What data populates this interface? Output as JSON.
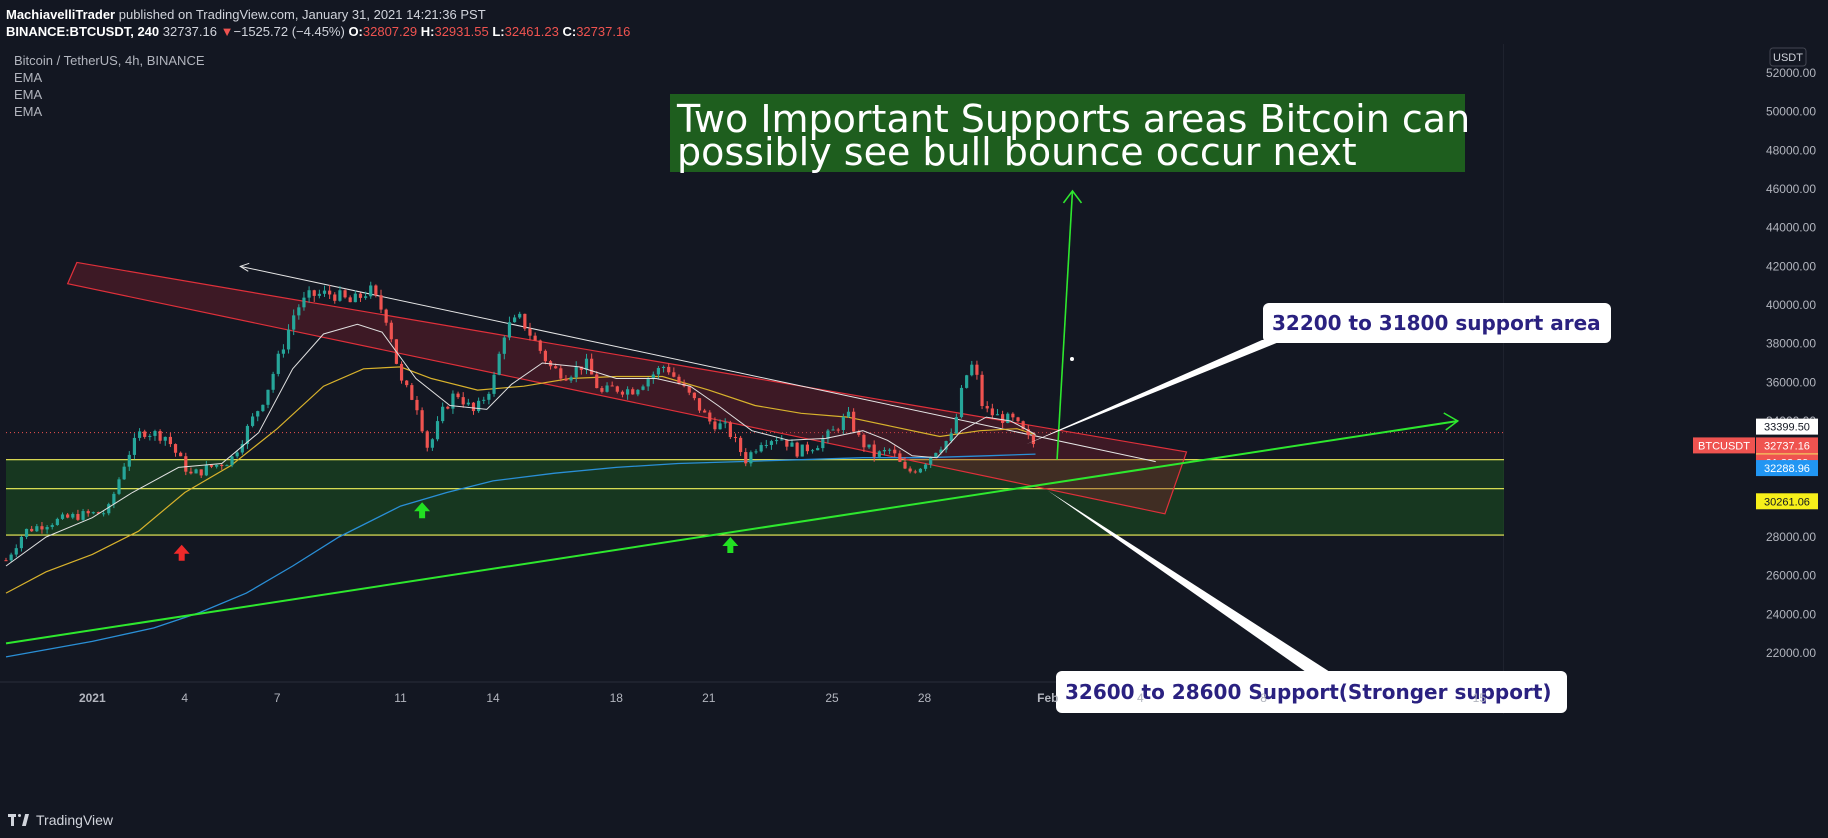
{
  "header": {
    "author": "MachiavelliTrader",
    "published_text": " published on TradingView.com, January 31, 2021 14:21:36 PST",
    "symbol": "BINANCE:BTCUSDT, 240",
    "last": "32737.16",
    "change_arrow": "▼",
    "change": "−1525.72 (−4.45%)",
    "o_label": "O:",
    "o_val": "32807.29",
    "h_label": "H:",
    "h_val": "32931.55",
    "l_label": "L:",
    "l_val": "32461.23",
    "c_label": "C:",
    "c_val": "32737.16"
  },
  "legend": {
    "title": "Bitcoin / TetherUS, 4h, BINANCE",
    "ema1": "EMA",
    "ema2": "EMA",
    "ema3": "EMA"
  },
  "footer": {
    "brand": "TradingView"
  },
  "colors": {
    "background": "#131722",
    "up": "#26a69a",
    "down": "#ef5350",
    "support_zone": "#1b4d1f",
    "channel": "#ef5350",
    "trend_green": "#2ee82e",
    "ema_white": "#e0e0e0",
    "ema_yellow": "#d8b22c",
    "ema_blue": "#2a8fd6"
  },
  "chart_data": {
    "type": "candlestick",
    "currency_label": "USDT",
    "y_ticks": [
      22000,
      24000,
      26000,
      28000,
      30000,
      32000,
      34000,
      36000,
      38000,
      40000,
      42000,
      44000,
      46000,
      48000,
      50000,
      52000
    ],
    "y_tick_labels": [
      "22000.00",
      "24000.00",
      "26000.00",
      "28000.00",
      "30000.00",
      "32000.00",
      "34000.00",
      "36000.00",
      "38000.00",
      "40000.00",
      "42000.00",
      "44000.00",
      "46000.00",
      "48000.00",
      "50000.00",
      "52000.00"
    ],
    "ylim": [
      20500,
      53500
    ],
    "x_ticks": [
      "2021",
      "4",
      "7",
      "11",
      "14",
      "18",
      "21",
      "25",
      "28",
      "Feb",
      "4",
      "8",
      "15"
    ],
    "x_tick_days": [
      0,
      3,
      6,
      10,
      13,
      17,
      20,
      24,
      27,
      31,
      34,
      38,
      45
    ],
    "xlim": [
      -2.8,
      45.8
    ],
    "price_labels": [
      {
        "text": "33399.50",
        "value": 33399.5,
        "bg": "#ffffff",
        "fg": "#131722"
      },
      {
        "text": "33287.45",
        "value": 33287.45,
        "bg": "#f5e663",
        "fg": "#131722"
      },
      {
        "text": "BTCUSDT",
        "value": 32737.16,
        "bg": "#ef5350",
        "fg": "#ffffff",
        "side": "left"
      },
      {
        "text": "32737.16",
        "value": 32737.16,
        "bg": "#ef5350",
        "fg": "#ffffff"
      },
      {
        "text": "01:38:29",
        "value": 32737.16,
        "bg": "#ef5350",
        "fg": "#ffffff",
        "offset": 17
      },
      {
        "text": "32288.96",
        "value": 32288.96,
        "bg": "#2196f3",
        "fg": "#ffffff"
      },
      {
        "text": "30261.06",
        "value": 30261.06,
        "bg": "#f7f01a",
        "fg": "#131722"
      }
    ],
    "support_lines": [
      32000,
      30500,
      28100
    ],
    "support_zone": [
      28100,
      32000
    ],
    "channel": {
      "upper": [
        [
          -0.5,
          42200
        ],
        [
          35.5,
          32400
        ]
      ],
      "lower": [
        [
          -0.8,
          41100
        ],
        [
          34.8,
          29200
        ]
      ]
    },
    "white_trendline": [
      [
        4.8,
        42000
      ],
      [
        34.5,
        31900
      ]
    ],
    "green_trendline": [
      [
        -2.8,
        22500
      ],
      [
        44.3,
        34000
      ]
    ],
    "green_arrow_up": [
      [
        31.3,
        32000
      ],
      [
        31.8,
        45900
      ]
    ],
    "annotation_title": [
      "Two Important Supports areas Bitcoin can",
      "possibly  see bull bounce occur next"
    ],
    "callouts": [
      {
        "text": "32200 to 31800 support area",
        "target": [
          30.3,
          32800
        ]
      },
      {
        "text": "32600 to 28600 Support(Stronger support)",
        "target": [
          31.0,
          30400
        ]
      }
    ],
    "markers": [
      {
        "day": 2.9,
        "value": 27600,
        "color": "#ef2a2a",
        "dir": "up"
      },
      {
        "day": 10.7,
        "value": 29800,
        "color": "#22e022",
        "dir": "up"
      },
      {
        "day": 20.7,
        "value": 28000,
        "color": "#22e022",
        "dir": "up"
      }
    ],
    "close_path": [
      [
        -2.8,
        26800
      ],
      [
        -2.2,
        28300
      ],
      [
        -1.5,
        28700
      ],
      [
        -0.5,
        29100
      ],
      [
        0.5,
        29300
      ],
      [
        1.1,
        32100
      ],
      [
        1.6,
        33500
      ],
      [
        2.4,
        33200
      ],
      [
        2.8,
        32100
      ],
      [
        3.2,
        31200
      ],
      [
        3.8,
        31600
      ],
      [
        4.5,
        32000
      ],
      [
        5.0,
        33500
      ],
      [
        5.6,
        35300
      ],
      [
        6.1,
        37500
      ],
      [
        6.6,
        39800
      ],
      [
        7.1,
        40500
      ],
      [
        7.8,
        40600
      ],
      [
        8.4,
        40100
      ],
      [
        9.0,
        40800
      ],
      [
        9.6,
        39200
      ],
      [
        10.0,
        36000
      ],
      [
        10.5,
        35000
      ],
      [
        10.9,
        32500
      ],
      [
        11.4,
        34600
      ],
      [
        11.8,
        35500
      ],
      [
        12.4,
        34400
      ],
      [
        13.0,
        36000
      ],
      [
        13.4,
        38800
      ],
      [
        13.9,
        39300
      ],
      [
        14.4,
        38000
      ],
      [
        14.9,
        36700
      ],
      [
        15.4,
        36400
      ],
      [
        16.0,
        37000
      ],
      [
        16.5,
        35400
      ],
      [
        16.9,
        35700
      ],
      [
        17.5,
        35600
      ],
      [
        18.0,
        36200
      ],
      [
        18.6,
        36900
      ],
      [
        19.1,
        35800
      ],
      [
        19.6,
        34900
      ],
      [
        20.0,
        34000
      ],
      [
        20.6,
        33600
      ],
      [
        21.2,
        32000
      ],
      [
        21.7,
        33000
      ],
      [
        22.3,
        33200
      ],
      [
        22.9,
        32400
      ],
      [
        23.5,
        32800
      ],
      [
        24.0,
        33400
      ],
      [
        24.5,
        34300
      ],
      [
        24.9,
        33000
      ],
      [
        25.4,
        32200
      ],
      [
        25.9,
        32500
      ],
      [
        26.4,
        31300
      ],
      [
        26.9,
        31700
      ],
      [
        27.4,
        32600
      ],
      [
        27.9,
        33200
      ],
      [
        28.3,
        36200
      ],
      [
        28.6,
        37000
      ],
      [
        28.9,
        34600
      ],
      [
        29.4,
        34200
      ],
      [
        29.9,
        34000
      ],
      [
        30.4,
        33000
      ],
      [
        30.6,
        32737
      ]
    ],
    "ema_fast": [
      [
        -2.8,
        26500
      ],
      [
        -1.5,
        28000
      ],
      [
        0.0,
        29000
      ],
      [
        1.3,
        30300
      ],
      [
        2.8,
        31600
      ],
      [
        4.2,
        31800
      ],
      [
        5.4,
        33400
      ],
      [
        6.5,
        36700
      ],
      [
        7.5,
        38500
      ],
      [
        8.6,
        39000
      ],
      [
        9.4,
        38600
      ],
      [
        10.5,
        36200
      ],
      [
        11.6,
        34800
      ],
      [
        12.8,
        34600
      ],
      [
        13.6,
        35900
      ],
      [
        14.6,
        37000
      ],
      [
        15.8,
        36800
      ],
      [
        17.0,
        36200
      ],
      [
        18.3,
        36200
      ],
      [
        19.4,
        35800
      ],
      [
        20.3,
        34800
      ],
      [
        21.4,
        33500
      ],
      [
        22.6,
        33000
      ],
      [
        23.8,
        33100
      ],
      [
        25.0,
        33500
      ],
      [
        25.8,
        33000
      ],
      [
        26.6,
        32200
      ],
      [
        27.4,
        32100
      ],
      [
        28.2,
        33500
      ],
      [
        29.0,
        34200
      ],
      [
        29.8,
        34000
      ],
      [
        30.6,
        33300
      ]
    ],
    "ema_mid": [
      [
        -2.8,
        25100
      ],
      [
        -1.5,
        26200
      ],
      [
        0.0,
        27100
      ],
      [
        1.5,
        28300
      ],
      [
        3.0,
        30300
      ],
      [
        4.5,
        31700
      ],
      [
        6.0,
        33600
      ],
      [
        7.5,
        35800
      ],
      [
        8.8,
        36700
      ],
      [
        10.0,
        36800
      ],
      [
        11.0,
        36200
      ],
      [
        12.5,
        35600
      ],
      [
        14.0,
        35800
      ],
      [
        15.5,
        36200
      ],
      [
        17.0,
        36300
      ],
      [
        18.5,
        36300
      ],
      [
        20.0,
        35600
      ],
      [
        21.5,
        34800
      ],
      [
        23.0,
        34400
      ],
      [
        24.5,
        34200
      ],
      [
        26.0,
        33700
      ],
      [
        27.5,
        33200
      ],
      [
        28.8,
        33500
      ],
      [
        30.0,
        33600
      ],
      [
        30.6,
        33290
      ]
    ],
    "ema_slow": [
      [
        -2.8,
        21800
      ],
      [
        0.0,
        22600
      ],
      [
        2.0,
        23300
      ],
      [
        3.5,
        24100
      ],
      [
        5.0,
        25100
      ],
      [
        6.5,
        26500
      ],
      [
        8.0,
        28000
      ],
      [
        10.0,
        29600
      ],
      [
        11.5,
        30300
      ],
      [
        13.0,
        30900
      ],
      [
        15.0,
        31300
      ],
      [
        17.0,
        31600
      ],
      [
        19.0,
        31800
      ],
      [
        21.0,
        31900
      ],
      [
        23.0,
        32000
      ],
      [
        25.0,
        32100
      ],
      [
        27.0,
        32100
      ],
      [
        29.0,
        32200
      ],
      [
        30.6,
        32290
      ]
    ]
  }
}
